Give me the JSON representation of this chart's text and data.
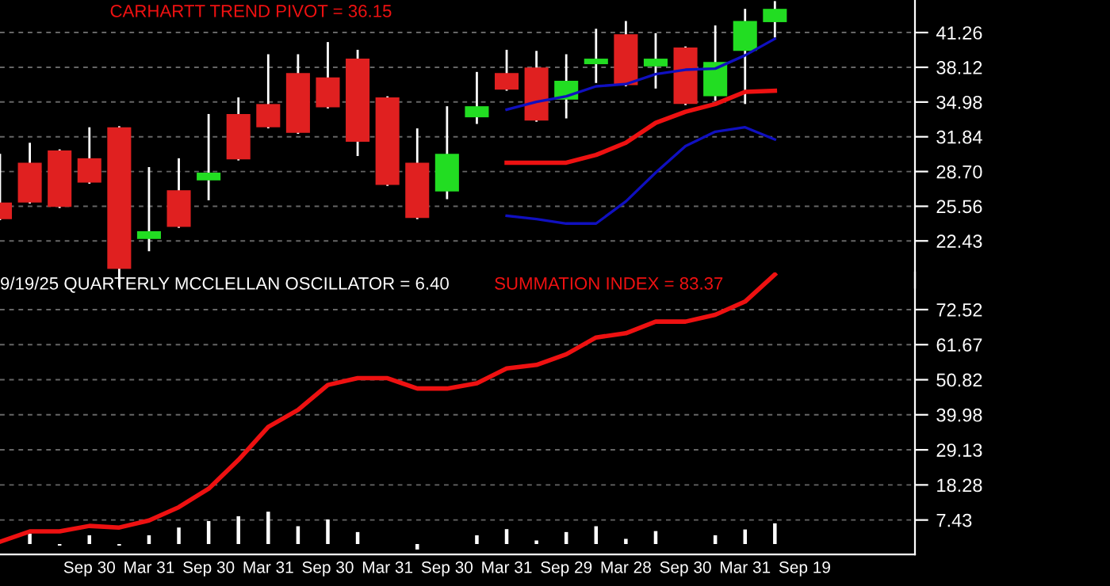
{
  "chart_data": [
    {
      "type": "candlestick",
      "annotations": [
        "CARHARTT TREND PIVOT = 36.15"
      ],
      "categories": [
        null,
        null,
        null,
        null,
        null,
        null,
        null,
        null,
        null,
        null,
        null,
        null,
        null,
        null,
        null,
        null,
        null,
        null,
        null,
        null,
        null,
        null,
        null,
        null,
        null,
        null,
        null,
        null,
        null,
        null,
        null
      ],
      "ohlc": [
        [
          25.9,
          30.2,
          24.4,
          24.4
        ],
        [
          29.5,
          31.2,
          25.9,
          25.9
        ],
        [
          30.6,
          30.6,
          25.5,
          25.5
        ],
        [
          29.9,
          32.6,
          27.7,
          27.7
        ],
        [
          32.7,
          32.7,
          18.3,
          19.9
        ],
        [
          22.6,
          29.0,
          21.6,
          23.3
        ],
        [
          27.0,
          29.8,
          23.7,
          23.7
        ],
        [
          27.9,
          33.8,
          26.2,
          28.6
        ],
        [
          33.9,
          35.3,
          29.8,
          29.8
        ],
        [
          34.8,
          39.2,
          32.7,
          32.7
        ],
        [
          37.6,
          39.2,
          32.2,
          32.2
        ],
        [
          37.2,
          40.3,
          34.5,
          34.5
        ],
        [
          38.9,
          39.6,
          30.2,
          31.4
        ],
        [
          35.4,
          35.4,
          27.5,
          27.5
        ],
        [
          29.5,
          32.5,
          24.5,
          24.5
        ],
        [
          26.9,
          34.5,
          26.3,
          30.3
        ],
        [
          33.6,
          37.6,
          33.1,
          34.6
        ],
        [
          37.6,
          39.6,
          36.1,
          36.1
        ],
        [
          38.1,
          39.5,
          33.3,
          33.3
        ],
        [
          35.2,
          39.2,
          33.6,
          36.9
        ],
        [
          38.4,
          41.5,
          36.8,
          38.9
        ],
        [
          41.1,
          42.2,
          36.5,
          36.5
        ],
        [
          38.2,
          41.1,
          36.3,
          38.9
        ],
        [
          39.9,
          39.9,
          34.8,
          34.8
        ],
        [
          35.5,
          41.8,
          35.2,
          38.6
        ],
        [
          39.6,
          43.3,
          34.9,
          42.3
        ],
        [
          42.2,
          44.0,
          40.9,
          43.4
        ],
        null,
        null,
        null,
        null
      ],
      "colors": [
        "#e02020",
        "#e02020",
        "#e02020",
        "#e02020",
        "#e02020",
        "#22dd22",
        "#e02020",
        "#22dd22",
        "#e02020",
        "#e02020",
        "#e02020",
        "#e02020",
        "#e02020",
        "#e02020",
        "#e02020",
        "#22dd22",
        "#22dd22",
        "#e02020",
        "#e02020",
        "#22dd22",
        "#22dd22",
        "#e02020",
        "#22dd22",
        "#e02020",
        "#22dd22",
        "#22dd22",
        "#22dd22",
        null,
        null,
        null,
        null
      ],
      "series": [
        {
          "type": "line",
          "color": "#1010c0",
          "values": [
            null,
            null,
            null,
            null,
            null,
            null,
            null,
            null,
            null,
            null,
            null,
            null,
            null,
            null,
            null,
            null,
            null,
            34.3,
            35.0,
            35.5,
            36.4,
            36.6,
            37.5,
            37.9,
            38.0,
            39.2,
            40.7,
            null,
            null,
            null,
            null
          ]
        },
        {
          "type": "line",
          "color": "#ee1111",
          "values": [
            null,
            null,
            null,
            null,
            null,
            null,
            null,
            null,
            null,
            null,
            null,
            null,
            null,
            null,
            null,
            null,
            null,
            29.5,
            29.5,
            29.5,
            30.2,
            31.3,
            33.1,
            34.1,
            34.8,
            35.9,
            36.0,
            null,
            null,
            null,
            null
          ]
        },
        {
          "type": "line",
          "color": "#1010c0",
          "values": [
            null,
            null,
            null,
            null,
            null,
            null,
            null,
            null,
            null,
            null,
            null,
            null,
            null,
            null,
            null,
            null,
            null,
            24.7,
            24.4,
            24.0,
            24.0,
            26.0,
            28.6,
            31.0,
            32.3,
            32.7,
            31.6,
            null,
            null,
            null,
            null
          ]
        }
      ],
      "ylim": [
        18.2,
        44.2
      ],
      "yticks": [
        22.43,
        25.56,
        {
          "value": 28.7,
          "label": "28.70"
        },
        31.84,
        34.98,
        38.12,
        41.26
      ],
      "grid": "y",
      "tick_labels": "y"
    },
    {
      "type": "line",
      "annotations": [
        "9/19/25 QUARTERLY MCCLELLAN OSCILLATOR = 6.40",
        "SUMMATION INDEX = 83.37"
      ],
      "categories": [
        null,
        null,
        null,
        "Sep 30",
        null,
        "Mar 31",
        null,
        "Sep 30",
        null,
        "Mar 31",
        null,
        "Sep 30",
        null,
        "Mar 31",
        null,
        "Sep 30",
        null,
        "Mar 31",
        null,
        "Sep 29",
        null,
        "Mar 28",
        null,
        "Sep 30",
        null,
        "Mar 31",
        null,
        "Sep 19",
        null,
        null,
        null
      ],
      "series": [
        {
          "type": "bar",
          "color": "#ffffff",
          "values": [
            null,
            3.2,
            -0.5,
            2.7,
            -0.5,
            2.7,
            5.1,
            7.1,
            8.6,
            10.0,
            5.5,
            7.6,
            3.7,
            null,
            -1.7,
            null,
            2.7,
            4.6,
            1.1,
            3.7,
            5.5,
            1.6,
            4.0,
            null,
            2.7,
            4.5,
            6.4,
            null,
            null,
            null,
            null
          ]
        },
        {
          "type": "line",
          "color": "#ee1111",
          "values": [
            0.7,
            3.9,
            3.9,
            5.6,
            5.1,
            7.3,
            11.4,
            17.1,
            26.0,
            36.2,
            41.5,
            49.2,
            51.3,
            51.3,
            48.1,
            48.1,
            49.7,
            54.3,
            55.4,
            58.7,
            63.9,
            65.2,
            68.8,
            68.8,
            70.9,
            75.0,
            83.4,
            null,
            null,
            null,
            null
          ]
        }
      ],
      "ylim": [
        -3.2,
        84
      ],
      "yticks": [
        7.43,
        18.28,
        29.13,
        39.98,
        50.82,
        61.67,
        72.52
      ],
      "grid": "y"
    }
  ]
}
